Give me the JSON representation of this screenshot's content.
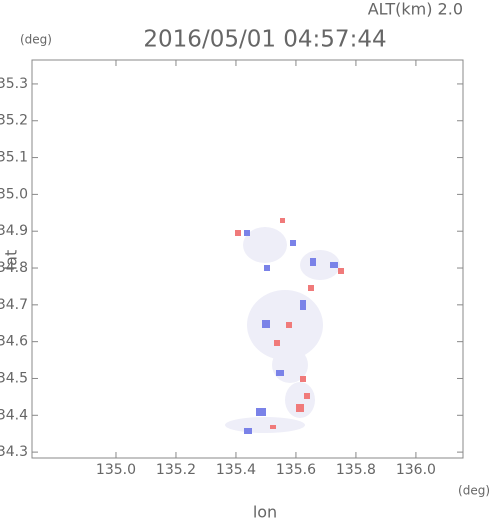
{
  "chart_data": {
    "type": "field",
    "title": "2016/05/01 04:57:44",
    "annotation": "ALT(km) 2.0",
    "y_unit": "(deg)",
    "x_unit": "(deg)",
    "xlabel": "lon",
    "ylabel": "lat",
    "xlim": [
      134.72,
      136.157
    ],
    "ylim": [
      34.284,
      35.365
    ],
    "xticks": [
      {
        "value": 135,
        "label": "135.0"
      },
      135.2,
      135.4,
      135.6,
      135.8,
      {
        "value": 136,
        "label": "136.0"
      }
    ],
    "yticks": [
      34.3,
      34.4,
      34.5,
      34.6,
      34.7,
      34.8,
      34.9,
      {
        "value": 35,
        "label": "35.0"
      },
      35.1,
      35.2,
      35.3
    ]
  }
}
